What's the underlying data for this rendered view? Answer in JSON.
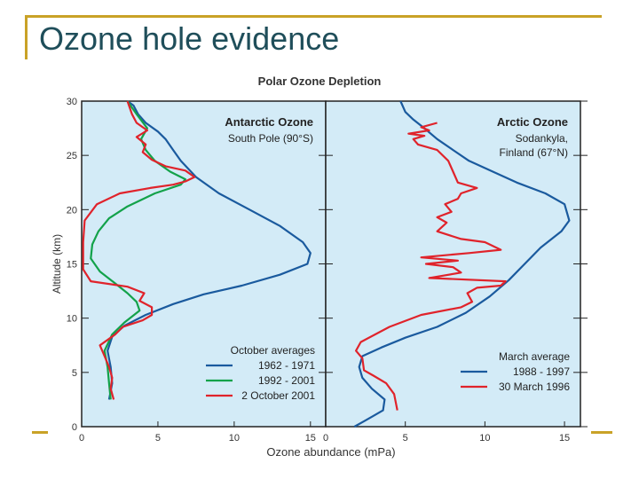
{
  "slide": {
    "title": "Ozone hole evidence"
  },
  "colors": {
    "accent_gold": "#c9a227",
    "title": "#1f4e5a",
    "panel_bg": "#d3ebf7",
    "series_1962_1971": "#1a5a9e",
    "series_1992_2001": "#13a24a",
    "series_2oct2001": "#e0232b",
    "series_1988_1997": "#1a5a9e",
    "series_30mar1996": "#e0232b"
  },
  "chart_data": {
    "type": "line",
    "title": "Polar Ozone Depletion",
    "xlabel": "Ozone abundance (mPa)",
    "ylabel": "Altitude (km)",
    "ylim": [
      0,
      30
    ],
    "yticks": [
      "0",
      "5",
      "10",
      "15",
      "20",
      "25",
      "30"
    ],
    "xticks": [
      "0",
      "5",
      "10",
      "15"
    ],
    "grid": false,
    "panels": [
      {
        "title": "Antarctic Ozone",
        "subtitle": [
          "South Pole (90°S)"
        ],
        "xlim": [
          0,
          16
        ],
        "legend_title": "October averages",
        "legend_position": "bottom-right",
        "series": [
          {
            "name": "1962 - 1971",
            "color": "#1a5a9e",
            "points": [
              [
                1.8,
                2.5
              ],
              [
                2.0,
                4
              ],
              [
                1.9,
                5.5
              ],
              [
                1.7,
                7
              ],
              [
                2.0,
                8.3
              ],
              [
                2.8,
                9.3
              ],
              [
                4.2,
                10.3
              ],
              [
                6.0,
                11.3
              ],
              [
                8.0,
                12.2
              ],
              [
                10.5,
                13.0
              ],
              [
                13.0,
                14.0
              ],
              [
                14.8,
                15.0
              ],
              [
                15.0,
                16.0
              ],
              [
                14.5,
                17.0
              ],
              [
                13.0,
                18.5
              ],
              [
                11.0,
                20.0
              ],
              [
                9.0,
                21.5
              ],
              [
                7.5,
                23.0
              ],
              [
                6.5,
                24.5
              ],
              [
                6.0,
                25.5
              ],
              [
                5.5,
                26.5
              ],
              [
                5.0,
                27.2
              ],
              [
                4.2,
                28.0
              ],
              [
                3.7,
                28.8
              ],
              [
                3.4,
                29.6
              ],
              [
                3.0,
                30.0
              ]
            ]
          },
          {
            "name": "1992 - 2001",
            "color": "#13a24a",
            "points": [
              [
                1.9,
                2.5
              ],
              [
                1.8,
                4
              ],
              [
                1.7,
                5.5
              ],
              [
                1.5,
                7
              ],
              [
                2.0,
                8.5
              ],
              [
                2.8,
                9.6
              ],
              [
                3.8,
                10.7
              ],
              [
                3.6,
                11.5
              ],
              [
                3.0,
                12.3
              ],
              [
                2.2,
                13.2
              ],
              [
                1.2,
                14.3
              ],
              [
                0.6,
                15.5
              ],
              [
                0.7,
                16.8
              ],
              [
                1.1,
                18.0
              ],
              [
                1.8,
                19.2
              ],
              [
                3.0,
                20.3
              ],
              [
                4.8,
                21.5
              ],
              [
                6.5,
                22.3
              ],
              [
                6.8,
                22.8
              ],
              [
                5.8,
                23.5
              ],
              [
                4.8,
                24.5
              ],
              [
                4.2,
                25.5
              ],
              [
                3.9,
                26.5
              ],
              [
                4.3,
                27.5
              ],
              [
                3.6,
                28.8
              ],
              [
                3.0,
                30.0
              ]
            ]
          },
          {
            "name": "2 October 2001",
            "color": "#e0232b",
            "points": [
              [
                2.1,
                2.5
              ],
              [
                1.9,
                3.5
              ],
              [
                2.0,
                4.5
              ],
              [
                1.8,
                5.5
              ],
              [
                1.5,
                6.5
              ],
              [
                1.2,
                7.5
              ],
              [
                2.2,
                8.5
              ],
              [
                2.7,
                9.2
              ],
              [
                4.0,
                9.8
              ],
              [
                4.6,
                10.3
              ],
              [
                4.6,
                11.0
              ],
              [
                3.8,
                11.6
              ],
              [
                4.1,
                12.3
              ],
              [
                3.0,
                12.9
              ],
              [
                0.6,
                13.4
              ],
              [
                0.1,
                14.5
              ],
              [
                0.1,
                17.0
              ],
              [
                0.2,
                19.0
              ],
              [
                1.0,
                20.5
              ],
              [
                2.5,
                21.5
              ],
              [
                4.5,
                22.0
              ],
              [
                6.0,
                22.3
              ],
              [
                6.8,
                22.6
              ],
              [
                7.4,
                23.0
              ],
              [
                6.8,
                23.6
              ],
              [
                5.5,
                24.0
              ],
              [
                4.6,
                24.6
              ],
              [
                4.0,
                25.3
              ],
              [
                4.2,
                26.0
              ],
              [
                3.6,
                26.7
              ],
              [
                4.3,
                27.3
              ],
              [
                3.6,
                28.0
              ],
              [
                3.3,
                28.8
              ],
              [
                3.0,
                30.0
              ]
            ]
          }
        ]
      },
      {
        "title": "Arctic Ozone",
        "subtitle": [
          "Sodankyla,",
          "Finland (67°N)"
        ],
        "xlim": [
          0,
          16
        ],
        "legend_title": "March average",
        "legend_position": "bottom-right",
        "series": [
          {
            "name": "1988 - 1997",
            "color": "#1a5a9e",
            "points": [
              [
                1.8,
                0
              ],
              [
                2.4,
                0.5
              ],
              [
                3.0,
                1
              ],
              [
                3.6,
                1.5
              ],
              [
                3.7,
                2.5
              ],
              [
                2.9,
                3.5
              ],
              [
                2.3,
                4.5
              ],
              [
                2.1,
                5.5
              ],
              [
                2.3,
                6.5
              ],
              [
                3.5,
                7.3
              ],
              [
                5.0,
                8.2
              ],
              [
                7.0,
                9.2
              ],
              [
                8.8,
                10.5
              ],
              [
                10.3,
                12.0
              ],
              [
                11.5,
                13.5
              ],
              [
                12.5,
                15.0
              ],
              [
                13.5,
                16.5
              ],
              [
                14.8,
                18.0
              ],
              [
                15.3,
                19.0
              ],
              [
                15.0,
                20.5
              ],
              [
                13.8,
                21.5
              ],
              [
                12.0,
                22.5
              ],
              [
                10.5,
                23.5
              ],
              [
                9.0,
                24.5
              ],
              [
                8.0,
                25.5
              ],
              [
                7.0,
                26.5
              ],
              [
                6.2,
                27.5
              ],
              [
                5.5,
                28.3
              ],
              [
                5.0,
                29.0
              ],
              [
                4.7,
                30.0
              ]
            ]
          },
          {
            "name": "30 March 1996",
            "color": "#e0232b",
            "points": [
              [
                4.5,
                1.5
              ],
              [
                4.3,
                3
              ],
              [
                3.8,
                4
              ],
              [
                3.0,
                4.7
              ],
              [
                2.4,
                5.2
              ],
              [
                2.3,
                6.3
              ],
              [
                1.9,
                7
              ],
              [
                2.2,
                7.8
              ],
              [
                4.0,
                9.2
              ],
              [
                6.0,
                10.3
              ],
              [
                8.5,
                11.0
              ],
              [
                9.2,
                11.5
              ],
              [
                8.9,
                12.3
              ],
              [
                9.5,
                12.8
              ],
              [
                11.0,
                13.0
              ],
              [
                11.3,
                13.4
              ],
              [
                6.5,
                13.7
              ],
              [
                8.5,
                14.2
              ],
              [
                8.0,
                14.7
              ],
              [
                6.3,
                15.0
              ],
              [
                8.3,
                15.3
              ],
              [
                6.0,
                15.6
              ],
              [
                9.0,
                16.0
              ],
              [
                11.0,
                16.3
              ],
              [
                10.0,
                17.0
              ],
              [
                8.5,
                17.3
              ],
              [
                7.0,
                18.0
              ],
              [
                7.6,
                18.8
              ],
              [
                7.0,
                19.3
              ],
              [
                7.9,
                19.8
              ],
              [
                7.5,
                20.5
              ],
              [
                8.3,
                21.0
              ],
              [
                8.5,
                21.5
              ],
              [
                9.5,
                22.0
              ],
              [
                8.3,
                22.5
              ],
              [
                8.0,
                23.5
              ],
              [
                7.7,
                24.5
              ],
              [
                7.0,
                25.5
              ],
              [
                5.8,
                26.0
              ],
              [
                5.5,
                26.5
              ],
              [
                6.2,
                26.8
              ],
              [
                5.2,
                27.0
              ],
              [
                6.5,
                27.3
              ],
              [
                6.0,
                27.6
              ],
              [
                7.0,
                28.0
              ]
            ]
          }
        ]
      }
    ]
  }
}
